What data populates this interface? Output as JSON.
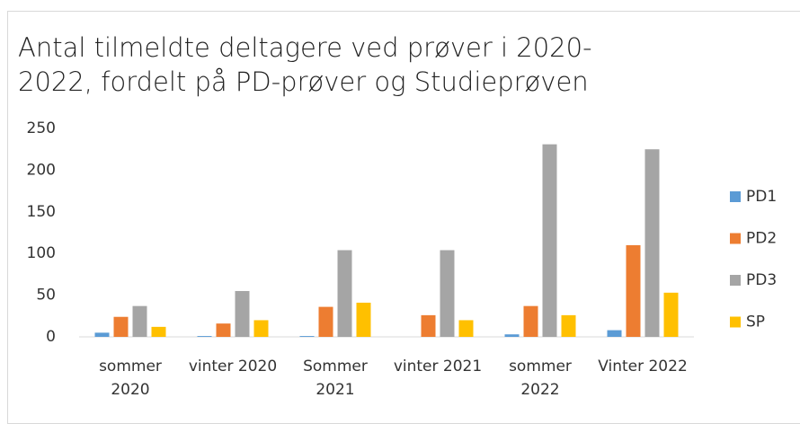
{
  "chart_data": {
    "type": "bar",
    "title": "Antal tilmeldte deltagere ved prøver i 2020-2022, fordelt på PD-prøver og Studieprøven",
    "categories": [
      "sommer 2020",
      "vinter 2020",
      "Sommer 2021",
      "vinter 2021",
      "sommer 2022",
      "Vinter 2022"
    ],
    "series": [
      {
        "name": "PD1",
        "color": "#5b9bd5",
        "values": [
          5,
          1,
          1,
          0,
          3,
          8
        ]
      },
      {
        "name": "PD2",
        "color": "#ed7d31",
        "values": [
          24,
          16,
          36,
          26,
          37,
          110
        ]
      },
      {
        "name": "PD3",
        "color": "#a5a5a5",
        "values": [
          37,
          55,
          104,
          104,
          231,
          225
        ]
      },
      {
        "name": "SP",
        "color": "#ffc000",
        "values": [
          12,
          20,
          41,
          20,
          26,
          53
        ]
      }
    ],
    "ylim": [
      0,
      250
    ],
    "yticks": [
      0,
      50,
      100,
      150,
      200,
      250
    ],
    "grid": false,
    "legend": "right"
  }
}
